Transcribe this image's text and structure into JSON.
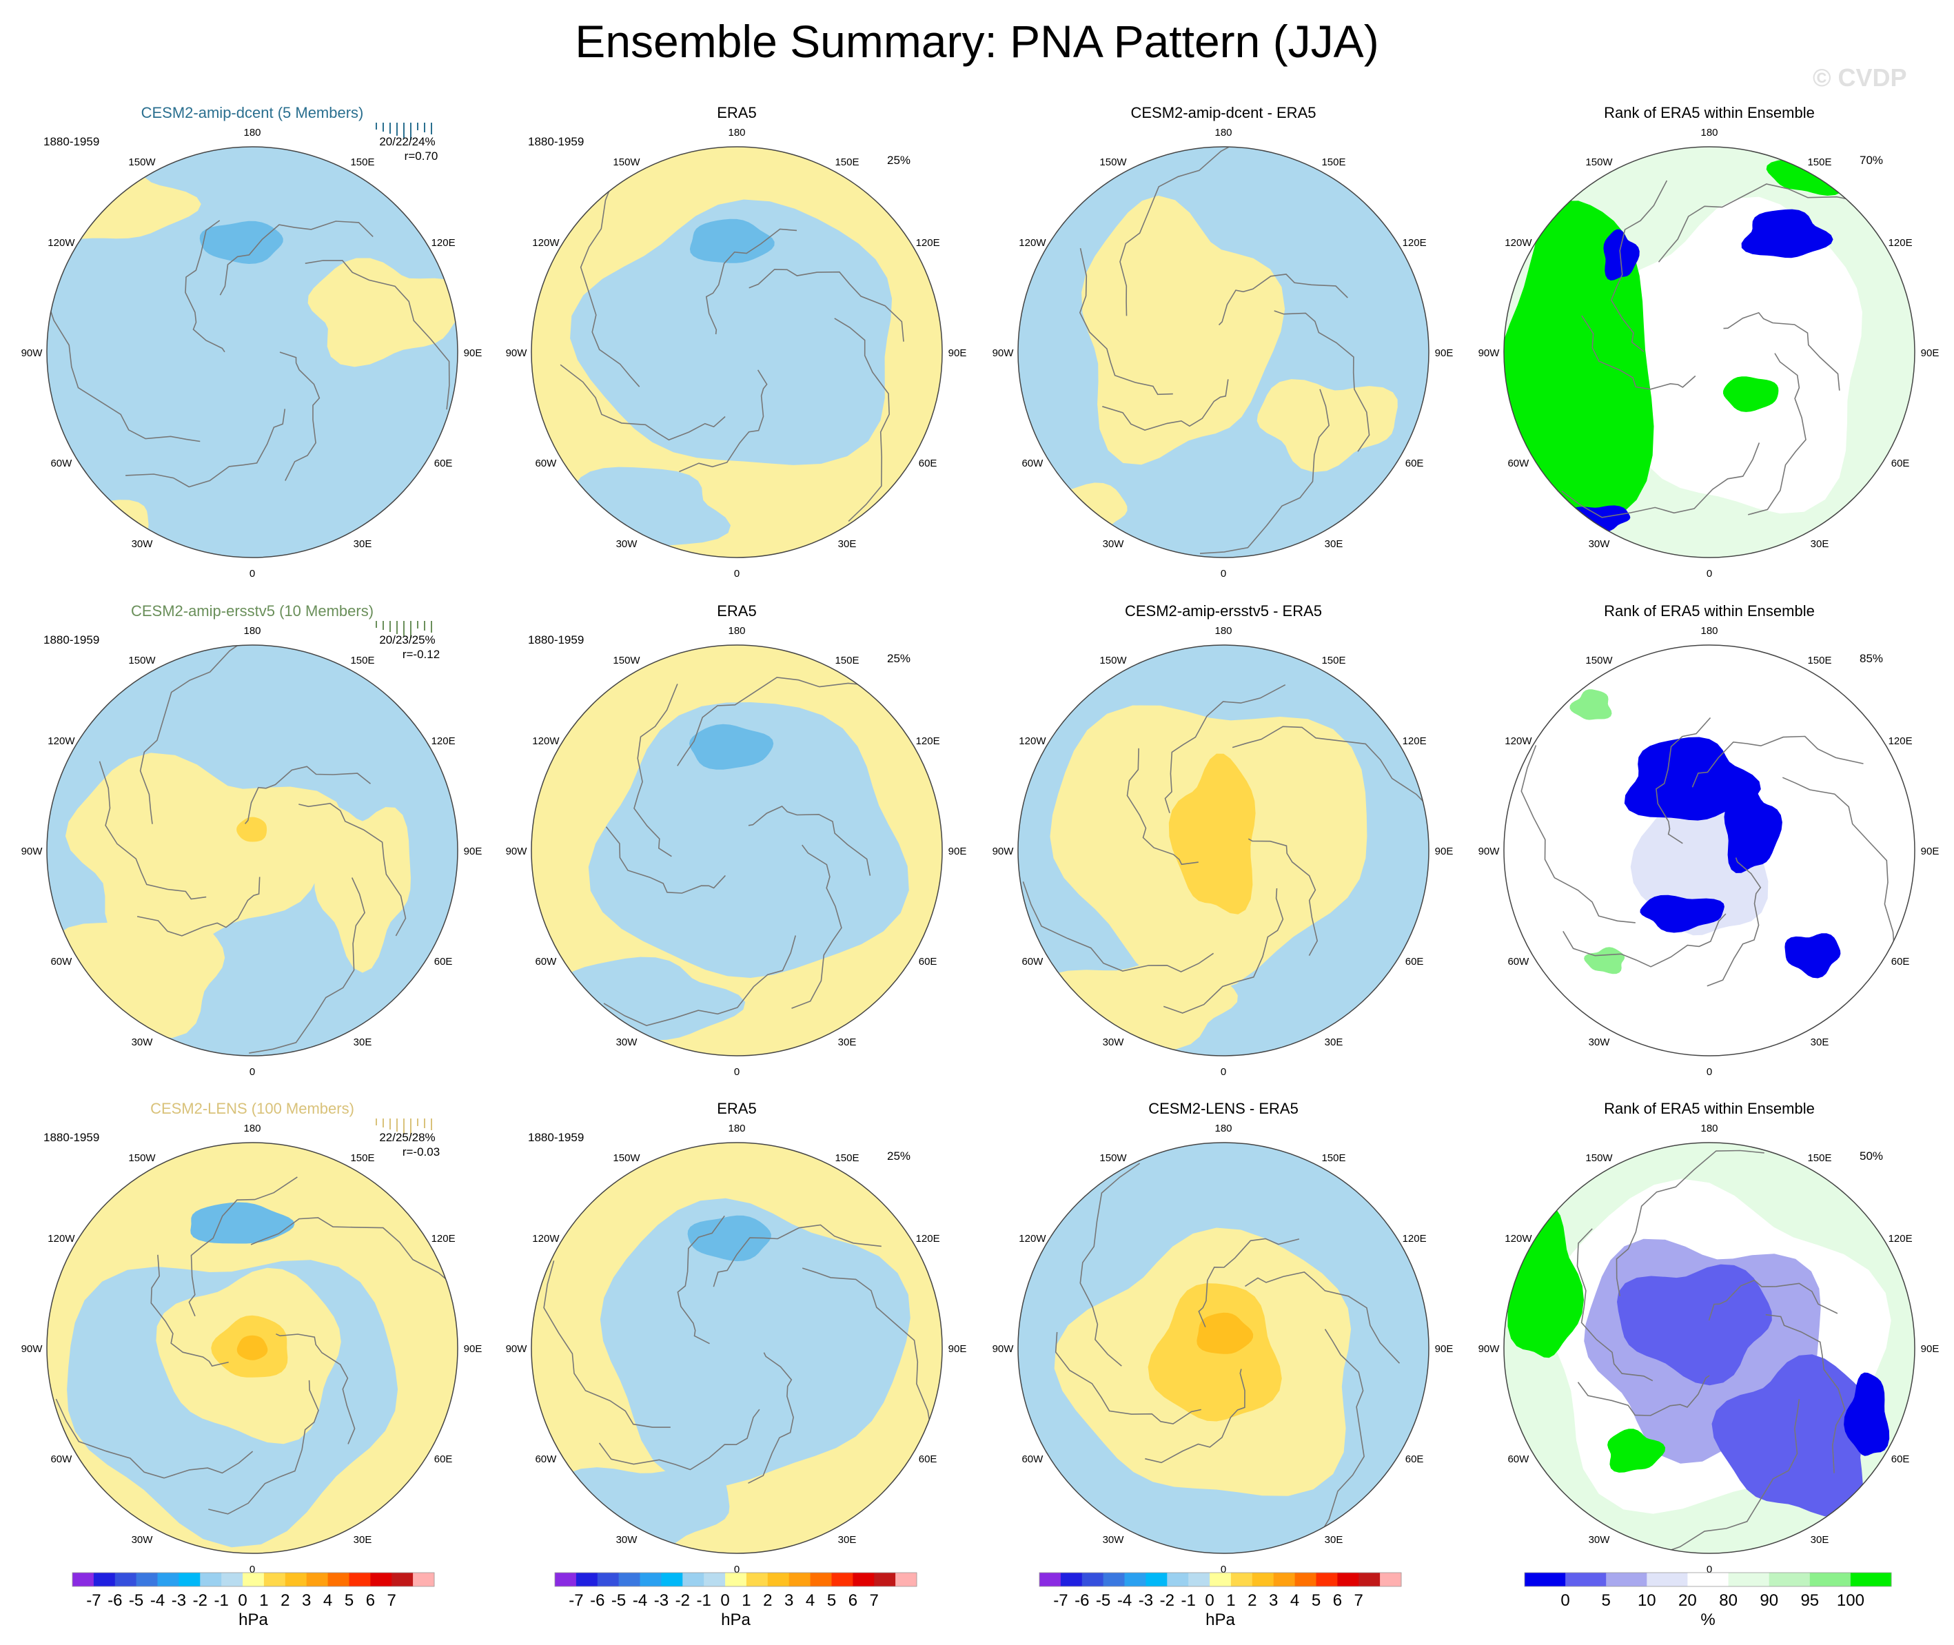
{
  "title": "Ensemble Summary: PNA Pattern (JJA)",
  "watermark": "© CVDP",
  "colors": {
    "ocean_blue": "#add8ee",
    "land_yellow": "#fbf0a0",
    "coast": "#777777",
    "title_dcent": "#2a6f8f",
    "title_ersstv5": "#6a8f5a",
    "title_lens": "#d9c27a"
  },
  "lon_labels": [
    "180",
    "150E",
    "120E",
    "90E",
    "60E",
    "30E",
    "0",
    "30W",
    "60W",
    "90W",
    "120W",
    "150W"
  ],
  "colorbar_hpa": {
    "colors": [
      "#8a2be2",
      "#2020e0",
      "#3550dd",
      "#3a78e0",
      "#2aa0f0",
      "#00b8f8",
      "#9ad0f0",
      "#b8dcf0",
      "#ffff99",
      "#ffd84a",
      "#ffc020",
      "#ffa010",
      "#ff7000",
      "#ff3000",
      "#e00000",
      "#c01818",
      "#ffb0b0"
    ],
    "tick_labels": [
      "-7",
      "-6",
      "-5",
      "-4",
      "-3",
      "-2",
      "-1",
      "0",
      "1",
      "2",
      "3",
      "4",
      "5",
      "6",
      "7"
    ],
    "unit": "hPa"
  },
  "colorbar_rank": {
    "colors": [
      "#0000ee",
      "#6060ee",
      "#a8a8ee",
      "#e0e4f8",
      "#ffffff",
      "#e4fbe4",
      "#c0f4c0",
      "#8cf08c",
      "#00ee00"
    ],
    "tick_labels": [
      "0",
      "5",
      "10",
      "20",
      "80",
      "90",
      "95",
      "100"
    ],
    "unit": "%"
  },
  "rows": [
    {
      "panels": [
        {
          "title": "CESM2-amip-dcent (5 Members)",
          "period": "1880-1959",
          "stats": "20/22/24%",
          "corr": "r=0.70"
        },
        {
          "title": "ERA5",
          "period": "1880-1959",
          "pct": "25%"
        },
        {
          "title": "CESM2-amip-dcent - ERA5"
        },
        {
          "title": "Rank of ERA5 within Ensemble",
          "pct": "70%"
        }
      ]
    },
    {
      "panels": [
        {
          "title": "CESM2-amip-ersstv5 (10 Members)",
          "period": "1880-1959",
          "stats": "20/23/25%",
          "corr": "r=-0.12"
        },
        {
          "title": "ERA5",
          "period": "1880-1959",
          "pct": "25%"
        },
        {
          "title": "CESM2-amip-ersstv5 - ERA5"
        },
        {
          "title": "Rank of ERA5 within Ensemble",
          "pct": "85%"
        }
      ]
    },
    {
      "panels": [
        {
          "title": "CESM2-LENS (100 Members)",
          "period": "1880-1959",
          "stats": "22/25/28%",
          "corr": "r=-0.03"
        },
        {
          "title": "ERA5",
          "period": "1880-1959",
          "pct": "25%"
        },
        {
          "title": "CESM2-LENS - ERA5"
        },
        {
          "title": "Rank of ERA5 within Ensemble",
          "pct": "50%"
        }
      ]
    }
  ]
}
